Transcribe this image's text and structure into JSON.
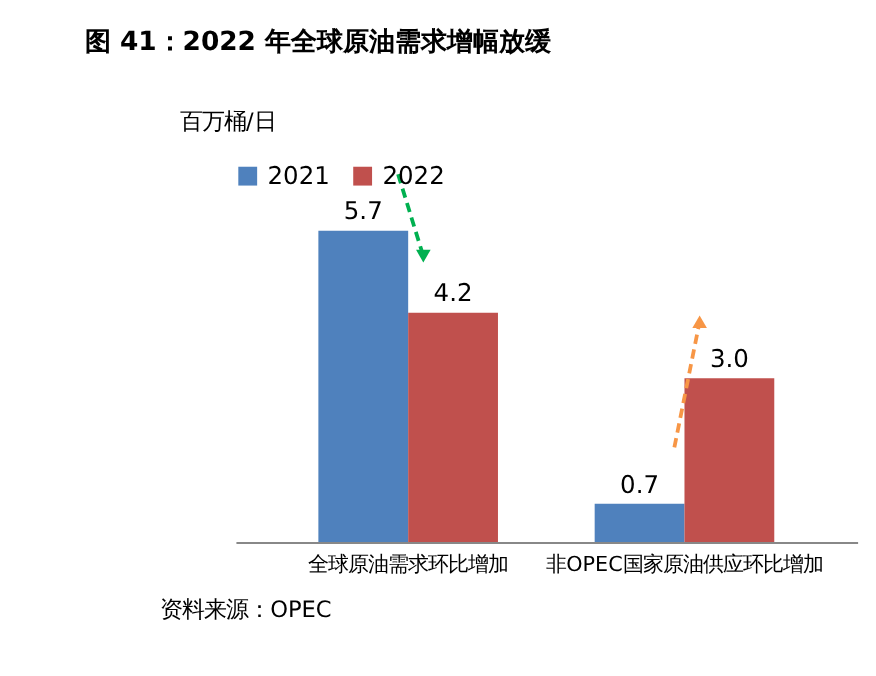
{
  "chart_data": {
    "type": "bar",
    "title": "图 41：2022 年全球原油需求增幅放缓",
    "ylabel": "百万桶/日",
    "categories": [
      "全球原油需求环比增加",
      "非OPEC国家原油供应环比增加"
    ],
    "series": [
      {
        "name": "2021",
        "color": "#4f81bd",
        "values": [
          5.7,
          0.7
        ],
        "value_labels": [
          "5.7",
          "0.7"
        ]
      },
      {
        "name": "2022",
        "color": "#c0504d",
        "values": [
          4.2,
          3.0
        ],
        "value_labels": [
          "4.2",
          "3.0"
        ]
      }
    ],
    "legend": "top",
    "grid": false,
    "annotations": [
      "资料来源：OPEC"
    ]
  }
}
